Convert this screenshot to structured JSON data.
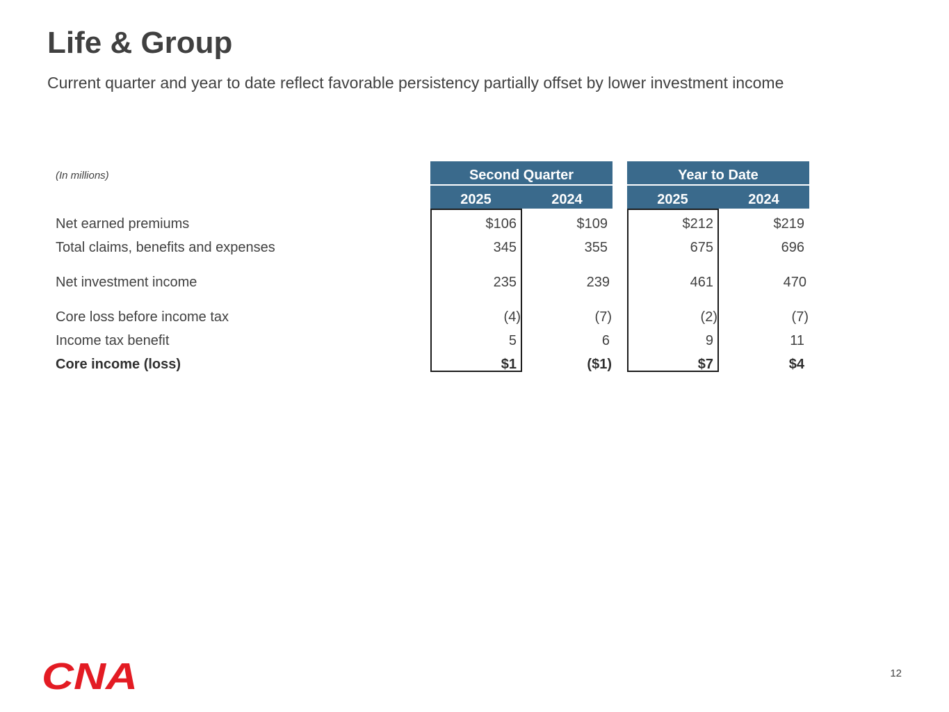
{
  "slide": {
    "title": "Life & Group",
    "subtitle": "Current quarter and year to date reflect favorable persistency partially offset by lower investment income",
    "page_number": "12",
    "logo_text": "CNA",
    "accent_color": "#3a6a8c",
    "logo_color": "#e31b23"
  },
  "table": {
    "units_note": "(In millions)",
    "groups": [
      {
        "label": "Second Quarter",
        "years": [
          "2025",
          "2024"
        ]
      },
      {
        "label": "Year to Date",
        "years": [
          "2025",
          "2024"
        ]
      }
    ],
    "rows": [
      {
        "label": "Net earned premiums",
        "values": [
          "$106",
          "$109",
          "$212",
          "$219"
        ]
      },
      {
        "label": "Total claims, benefits and expenses",
        "values": [
          "345",
          "355",
          "675",
          "696"
        ]
      },
      {
        "label": "Net investment income",
        "values": [
          "235",
          "239",
          "461",
          "470"
        ]
      },
      {
        "label": "Core loss before income tax",
        "values": [
          "(4)",
          "(7)",
          "(2)",
          "(7)"
        ]
      },
      {
        "label": "Income tax benefit",
        "values": [
          "5",
          "6",
          "9",
          "11"
        ]
      },
      {
        "label": "Core income (loss)",
        "values": [
          "$1",
          "($1)",
          "$7",
          "$4"
        ]
      }
    ]
  }
}
